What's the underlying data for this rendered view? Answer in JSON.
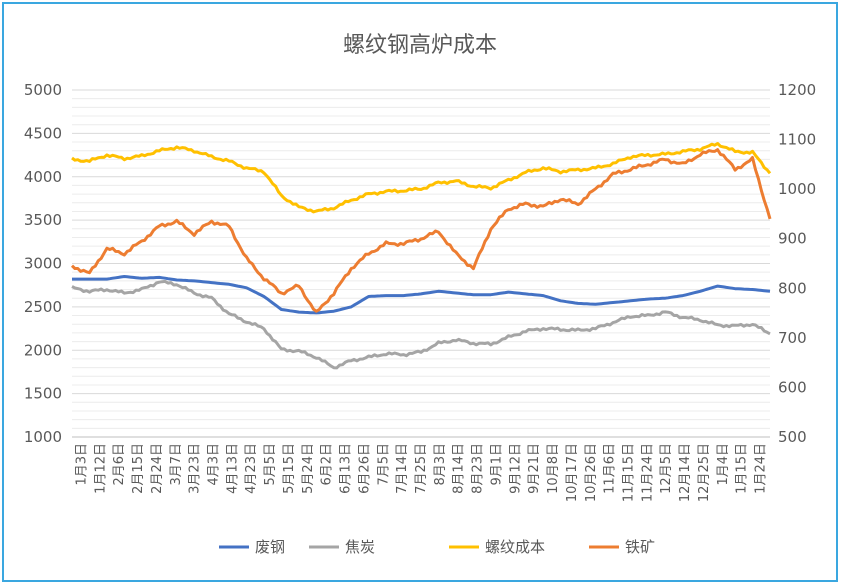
{
  "chart_data": {
    "type": "line",
    "title": "螺纹钢高炉成本",
    "left_axis": {
      "ticks": [
        "5000",
        "4500",
        "4000",
        "3500",
        "3000",
        "2500",
        "2000",
        "1500",
        "1000"
      ],
      "range": [
        1000,
        5000
      ]
    },
    "right_axis": {
      "ticks": [
        "1200",
        "1100",
        "1000",
        "900",
        "800",
        "700",
        "600",
        "500"
      ],
      "range": [
        500,
        1200
      ]
    },
    "x_ticks": [
      "1月3日",
      "1月12日",
      "2月6日",
      "2月15日",
      "2月24日",
      "3月7日",
      "3月23日",
      "4月3日",
      "4月13日",
      "4月23日",
      "5月5日",
      "5月15日",
      "5月24日",
      "6月2日",
      "6月13日",
      "6月26日",
      "7月5日",
      "7月14日",
      "7月25日",
      "8月3日",
      "8月14日",
      "8月23日",
      "9月1日",
      "9月12日",
      "9月21日",
      "10月8日",
      "10月17日",
      "10月26日",
      "11月6日",
      "11月15日",
      "11月24日",
      "12月5日",
      "12月14日",
      "12月25日",
      "1月4日",
      "1月15日",
      "1月24日"
    ],
    "grid": true,
    "legend_position": "bottom",
    "series": [
      {
        "name": "废钢",
        "axis": "left",
        "color": "#4472c4",
        "values": [
          2820,
          2820,
          2820,
          2850,
          2830,
          2840,
          2810,
          2800,
          2780,
          2760,
          2720,
          2620,
          2470,
          2440,
          2430,
          2450,
          2500,
          2620,
          2630,
          2630,
          2650,
          2680,
          2660,
          2640,
          2640,
          2670,
          2650,
          2630,
          2570,
          2540,
          2530,
          2550,
          2570,
          2590,
          2600,
          2630,
          2680,
          2740,
          2710,
          2700,
          2680
        ]
      },
      {
        "name": "焦炭",
        "axis": "left",
        "color": "#a5a5a5",
        "values": [
          2720,
          2680,
          2700,
          2660,
          2700,
          2790,
          2760,
          2660,
          2600,
          2420,
          2330,
          2250,
          2010,
          1990,
          1920,
          1800,
          1880,
          1920,
          1960,
          1950,
          1980,
          2080,
          2120,
          2080,
          2070,
          2150,
          2220,
          2250,
          2240,
          2230,
          2250,
          2320,
          2390,
          2400,
          2440,
          2380,
          2350,
          2290,
          2280,
          2300,
          2190
        ]
      },
      {
        "name": "螺纹成本",
        "axis": "left",
        "color": "#ffc000",
        "values": [
          4200,
          4180,
          4250,
          4210,
          4240,
          4300,
          4340,
          4300,
          4230,
          4180,
          4100,
          4060,
          3780,
          3650,
          3600,
          3640,
          3730,
          3800,
          3830,
          3840,
          3860,
          3930,
          3950,
          3890,
          3870,
          3960,
          4050,
          4100,
          4060,
          4080,
          4100,
          4150,
          4230,
          4250,
          4260,
          4290,
          4320,
          4380,
          4290,
          4280,
          4040
        ]
      },
      {
        "name": "铁矿",
        "axis": "right",
        "color": "#ed7d31",
        "values": [
          845,
          830,
          880,
          870,
          895,
          925,
          935,
          910,
          935,
          925,
          860,
          820,
          790,
          805,
          750,
          790,
          840,
          870,
          890,
          890,
          900,
          915,
          870,
          840,
          920,
          960,
          970,
          965,
          980,
          970,
          1000,
          1030,
          1040,
          1050,
          1060,
          1050,
          1070,
          1080,
          1040,
          1060,
          940
        ]
      }
    ]
  }
}
